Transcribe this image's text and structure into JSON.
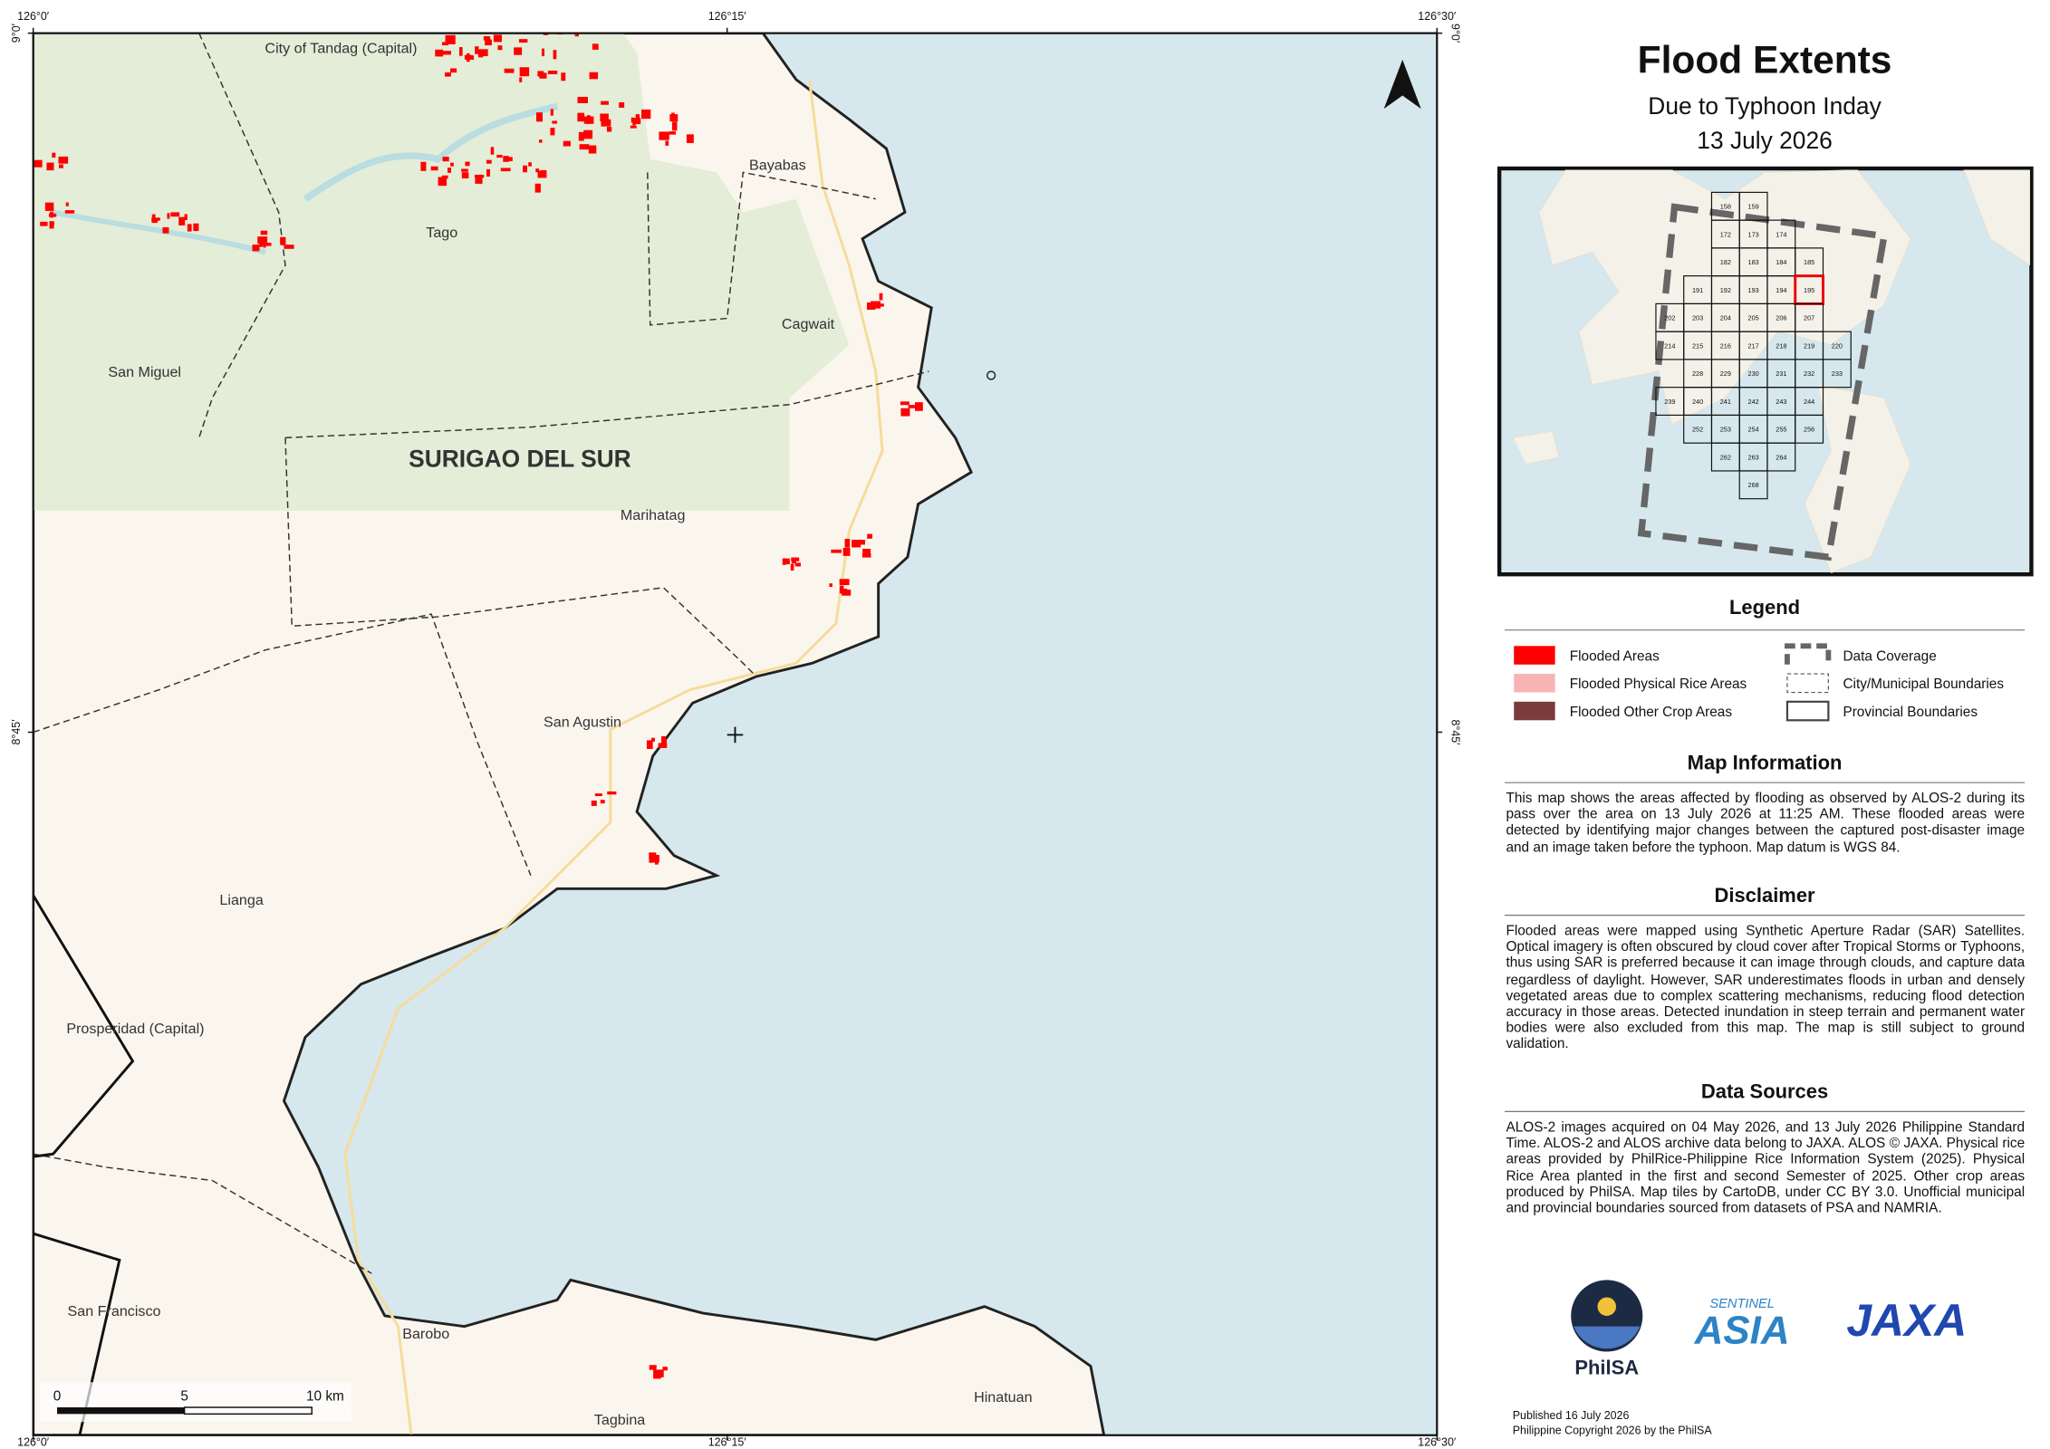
{
  "title": "Flood Extents",
  "subtitle": "Due to Typhoon Inday",
  "date": "13 July 2026",
  "map": {
    "places": [
      "City of Tandag (Capital)",
      "Tago",
      "San Miguel",
      "Bayabas",
      "Cagwait",
      "Marihatag",
      "San Agustin",
      "Lianga",
      "Prosperidad (Capital)",
      "San Francisco",
      "Barobo",
      "Tagbina",
      "Hinatuan"
    ],
    "province_label": "SURIGAO DEL SUR",
    "coordinates": {
      "top": [
        "126°0′",
        "126°15′",
        "126°30′"
      ],
      "bottom": [
        "126°0′",
        "126°15′",
        "126°30′"
      ],
      "left": [
        "9°0′",
        "8°45′"
      ],
      "right": [
        "9°0′",
        "8°45′"
      ]
    },
    "scale_bar": [
      "0",
      "5",
      "10 km"
    ]
  },
  "inset": {
    "tiles": [
      "158",
      "159",
      "172",
      "173",
      "174",
      "182",
      "183",
      "184",
      "185",
      "191",
      "192",
      "193",
      "194",
      "195",
      "202",
      "203",
      "204",
      "205",
      "206",
      "207",
      "214",
      "215",
      "216",
      "217",
      "218",
      "219",
      "220",
      "228",
      "229",
      "230",
      "231",
      "232",
      "233",
      "239",
      "240",
      "241",
      "242",
      "243",
      "244",
      "252",
      "253",
      "254",
      "255",
      "256",
      "262",
      "263",
      "264",
      "268"
    ],
    "highlight": "195"
  },
  "legend": {
    "title": "Legend",
    "items": [
      {
        "label": "Flooded Areas",
        "color": "#ff0000",
        "symbol": "fill"
      },
      {
        "label": "Flooded Physical Rice Areas",
        "color": "#f8b4b4",
        "symbol": "fill"
      },
      {
        "label": "Flooded Other Crop Areas",
        "color": "#7b3b3b",
        "symbol": "fill"
      },
      {
        "label": "Data Coverage",
        "color": "#666666",
        "symbol": "coverage"
      },
      {
        "label": "City/Municipal Boundaries",
        "color": "#555555",
        "symbol": "dashed"
      },
      {
        "label": "Provincial Boundaries",
        "color": "#444444",
        "symbol": "outline"
      }
    ]
  },
  "sections": [
    {
      "title": "Map Information",
      "text": "This map shows the areas affected by flooding as observed by ALOS-2 during its pass over the area on 13 July 2026 at 11:25 AM. These flooded areas were detected by identifying major changes between the captured post-disaster image and an image taken before the typhoon. Map datum is WGS 84."
    },
    {
      "title": "Disclaimer",
      "text": "Flooded areas were mapped using Synthetic Aperture Radar (SAR) Satellites. Optical imagery is often obscured by cloud cover after Tropical Storms or Typhoons, thus using SAR is preferred because it can image through clouds, and capture data regardless of daylight. However, SAR underestimates floods in urban and densely vegetated areas due to complex scattering mechanisms, reducing flood detection accuracy in those areas. Detected inundation in steep terrain and permanent water bodies were also excluded from this map. The map is still subject to ground validation."
    },
    {
      "title": "Data Sources",
      "text": "ALOS-2 images acquired on 04 May 2026, and 13 July 2026 Philippine Standard Time. ALOS-2 and ALOS archive data belong to JAXA. ALOS © JAXA. Physical rice areas provided by PhilRice-Philippine Rice Information System (2025). Physical Rice Area planted in the first and second Semester of 2025. Other crop areas produced by PhilSA. Map tiles by CartoDB, under CC BY 3.0. Unofficial municipal and provincial boundaries sourced from datasets of PSA and NAMRIA."
    }
  ],
  "logos": {
    "philsa": "PhilSA",
    "sentinel": "SENTINEL",
    "asia": "ASIA",
    "jaxa": "JAXA"
  },
  "footer": {
    "published": "Published 16 July 2026",
    "copyright": "Philippine Copyright 2026 by the PhilSA"
  }
}
